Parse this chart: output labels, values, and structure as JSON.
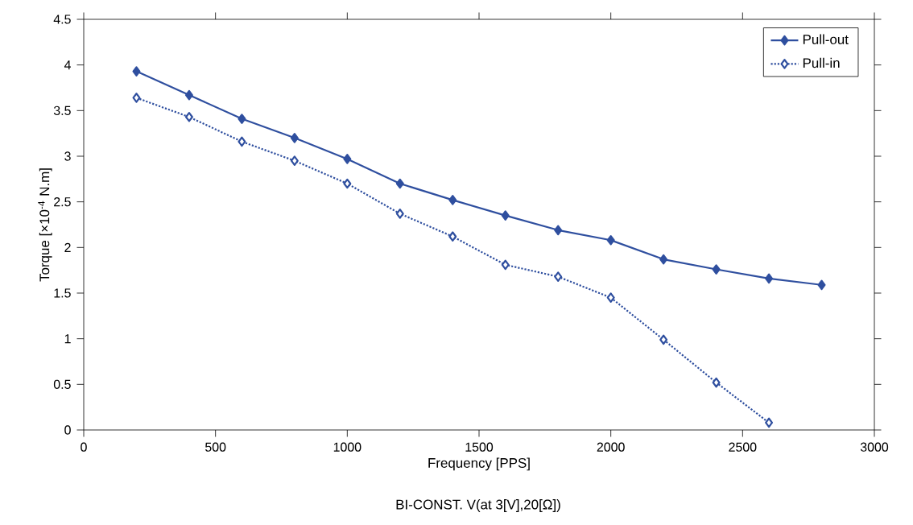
{
  "chart_data": {
    "type": "line",
    "xlabel": "Frequency [PPS]",
    "ylabel": "Torque [×10$^{-4}$ N.m]",
    "annotations": [
      "BI-CONST. V(at 3[V],20[Ω])"
    ],
    "xlim": [
      0,
      3000
    ],
    "xticks": [
      0,
      500,
      1000,
      1500,
      2000,
      2500,
      3000
    ],
    "ylim": [
      0,
      4.5
    ],
    "yticks": [
      0,
      0.5,
      1,
      1.5,
      2,
      2.5,
      3,
      3.5,
      4,
      4.5
    ],
    "legend": "top right",
    "marker": "diamond",
    "grid": false,
    "series": [
      {
        "name": "Pull-out",
        "color": "#2f4f9f",
        "line_style": "solid",
        "x": [
          200,
          400,
          600,
          800,
          1000,
          1200,
          1400,
          1600,
          1800,
          2000,
          2200,
          2400,
          2600,
          2800
        ],
        "values": [
          3.93,
          3.67,
          3.41,
          3.2,
          2.97,
          2.7,
          2.52,
          2.35,
          2.19,
          2.08,
          1.87,
          1.76,
          1.66,
          1.59
        ]
      },
      {
        "name": "Pull-in",
        "color": "#2f4f9f",
        "line_style": "dotted",
        "x": [
          200,
          400,
          600,
          800,
          1000,
          1200,
          1400,
          1600,
          1800,
          2000,
          2200,
          2400,
          2600
        ],
        "values": [
          3.64,
          3.43,
          3.16,
          2.95,
          2.7,
          2.37,
          2.12,
          1.81,
          1.68,
          1.45,
          0.99,
          0.52,
          0.08
        ]
      }
    ]
  }
}
